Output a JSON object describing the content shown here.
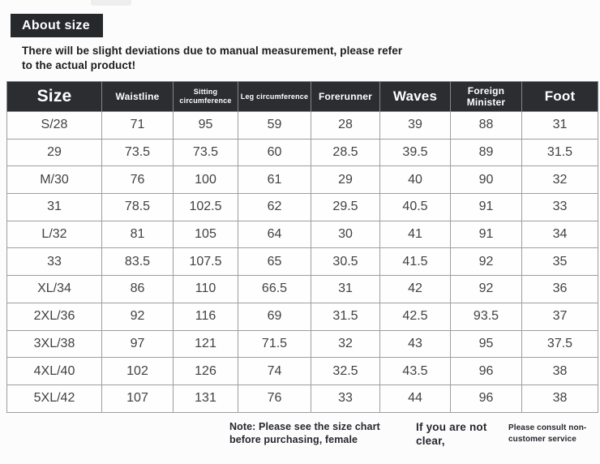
{
  "page": {
    "title_badge": "About size",
    "disclaimer": "There will be slight deviations due to manual measurement, please refer to the actual product!"
  },
  "table": {
    "columns": [
      {
        "key": "size",
        "label": "Size"
      },
      {
        "key": "waistline",
        "label": "Waistline"
      },
      {
        "key": "sitting-circumference",
        "label": "Sitting circumference"
      },
      {
        "key": "leg-circumference",
        "label": "Leg circumference"
      },
      {
        "key": "forerunner",
        "label": "Forerunner"
      },
      {
        "key": "waves",
        "label": "Waves"
      },
      {
        "key": "foreign-minister",
        "label": "Foreign Minister"
      },
      {
        "key": "foot",
        "label": "Foot"
      }
    ],
    "rows": [
      [
        "S/28",
        "71",
        "95",
        "59",
        "28",
        "39",
        "88",
        "31"
      ],
      [
        "29",
        "73.5",
        "73.5",
        "60",
        "28.5",
        "39.5",
        "89",
        "31.5"
      ],
      [
        "M/30",
        "76",
        "100",
        "61",
        "29",
        "40",
        "90",
        "32"
      ],
      [
        "31",
        "78.5",
        "102.5",
        "62",
        "29.5",
        "40.5",
        "91",
        "33"
      ],
      [
        "L/32",
        "81",
        "105",
        "64",
        "30",
        "41",
        "91",
        "34"
      ],
      [
        "33",
        "83.5",
        "107.5",
        "65",
        "30.5",
        "41.5",
        "92",
        "35"
      ],
      [
        "XL/34",
        "86",
        "110",
        "66.5",
        "31",
        "42",
        "92",
        "36"
      ],
      [
        "2XL/36",
        "92",
        "116",
        "69",
        "31.5",
        "42.5",
        "93.5",
        "37"
      ],
      [
        "3XL/38",
        "97",
        "121",
        "71.5",
        "32",
        "43",
        "95",
        "37.5"
      ],
      [
        "4XL/40",
        "102",
        "126",
        "74",
        "32.5",
        "43.5",
        "96",
        "38"
      ],
      [
        "5XL/42",
        "107",
        "131",
        "76",
        "33",
        "44",
        "96",
        "38"
      ]
    ]
  },
  "footer": {
    "note_left": "Note: Please see the size chart before purchasing, female",
    "note_middle": "If you are not clear,",
    "note_right": "Please consult non-customer service"
  },
  "colors": {
    "badge_bg": "#26282c",
    "header_bg": "#2b2d31",
    "header_text": "#ffffff",
    "border": "#9e9e9e",
    "body_text": "#414141",
    "note_text": "#26262e",
    "page_bg": "#fcfcfc"
  }
}
